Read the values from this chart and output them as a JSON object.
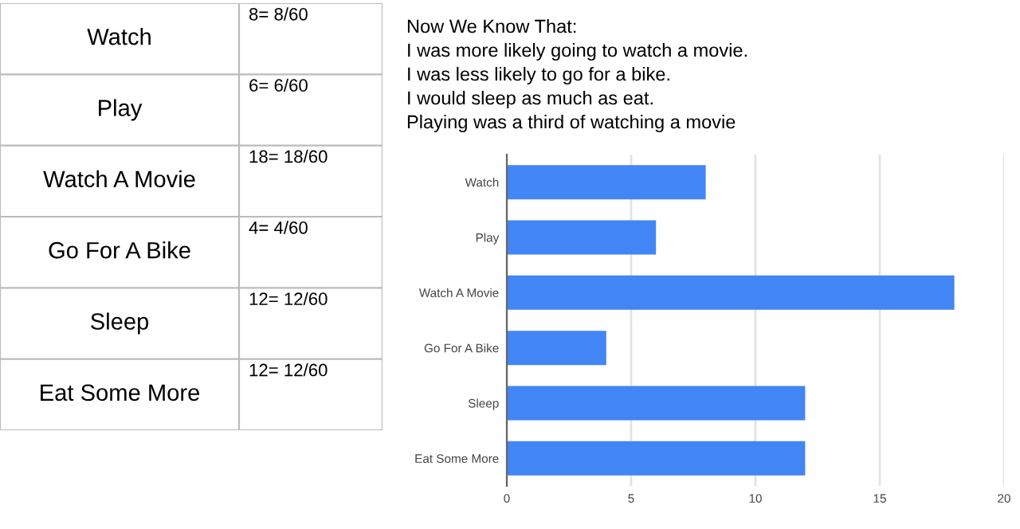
{
  "chart_data": [
    {
      "type": "other",
      "annotations": [
        "Watch",
        "8= 8/60",
        "Play",
        "6= 6/60",
        "Watch A Movie",
        "18= 18/60",
        "Go For A Bike",
        "4= 4/60",
        "Sleep",
        "12= 12/60",
        "Eat Some More",
        "12= 12/60"
      ]
    },
    {
      "type": "bar",
      "orientation": "horizontal",
      "categories": [
        "Watch",
        "Play",
        "Watch A Movie",
        "Go For A Bike",
        "Sleep",
        "Eat Some More"
      ],
      "values": [
        8,
        6,
        18,
        4,
        12,
        12
      ],
      "color": "#4285f4",
      "xlim": [
        0,
        20
      ],
      "xticks": [
        0,
        5,
        10,
        15,
        20
      ],
      "grid": "x",
      "annotations": [
        "Now We Know That:",
        "I was more likely going to watch a movie.",
        "I was less likely to go for a bike.",
        "I would sleep as much as eat.",
        "Playing was a third of watching a movie"
      ]
    }
  ]
}
